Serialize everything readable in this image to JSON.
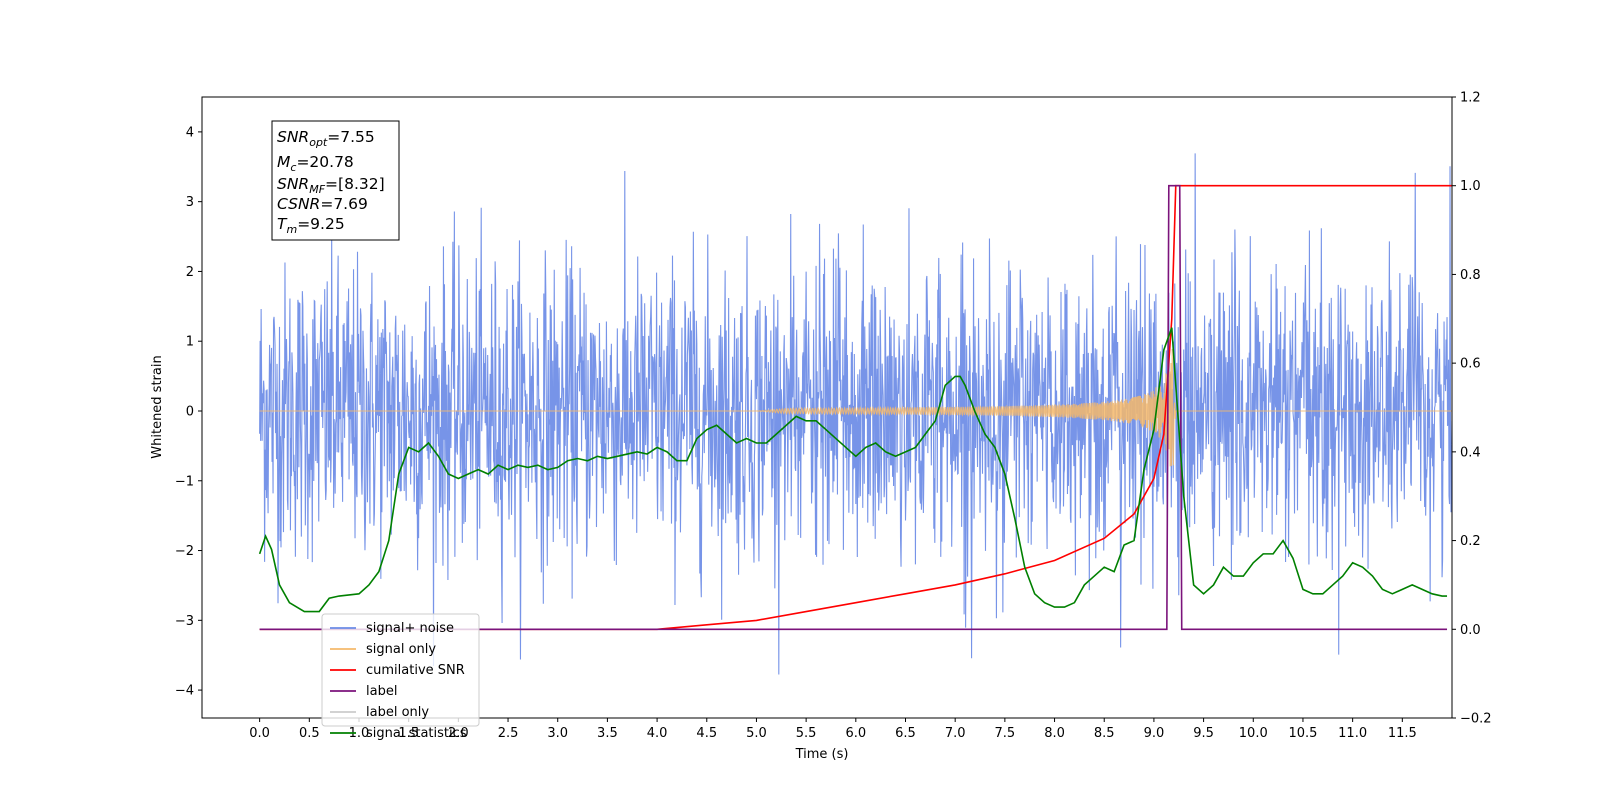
{
  "chart_data": {
    "type": "line",
    "xlabel": "Time (s)",
    "ylabel": "Whitened strain",
    "xlim": [
      -0.58,
      12.0
    ],
    "ylim": [
      -4.4,
      4.5
    ],
    "y2lim": [
      -0.2,
      1.2
    ],
    "x_ticks": [
      "0.0",
      "0.5",
      "1.0",
      "1.5",
      "2.0",
      "2.5",
      "3.0",
      "3.5",
      "4.0",
      "4.5",
      "5.0",
      "5.5",
      "6.0",
      "6.5",
      "7.0",
      "7.5",
      "8.0",
      "8.5",
      "9.0",
      "9.5",
      "10.0",
      "10.5",
      "11.0",
      "11.5"
    ],
    "y_ticks": [
      "4",
      "3",
      "2",
      "1",
      "0",
      "−1",
      "−2",
      "−3",
      "−4"
    ],
    "y2_ticks": [
      "1.2",
      "1.0",
      "0.8",
      "0.6",
      "0.4",
      "0.2",
      "0.0",
      "−0.2"
    ],
    "grid": false,
    "legend_position": "lower-left",
    "info_box": {
      "snr_opt": {
        "base": "SNR",
        "sub": "opt",
        "value": "=7.55"
      },
      "mc": {
        "base": "M",
        "sub": "c",
        "value": "=20.78"
      },
      "snr_mf": {
        "base": "SNR",
        "sub": "MF",
        "value": "=[8.32]"
      },
      "csnr": {
        "base": "CSNR",
        "value": "=7.69"
      },
      "tm": {
        "base": "T",
        "sub": "m",
        "value": "=9.25"
      }
    },
    "series": [
      {
        "name": "signal+ noise",
        "axis": "left",
        "color": "#6b8be6",
        "description_range": [
          -3.9,
          4.1
        ],
        "x_range": [
          0.0,
          12.0
        ]
      },
      {
        "name": "signal only",
        "axis": "left",
        "color": "#f5b96b",
        "chirp_start": 5.0,
        "merger": 9.18,
        "peak_amplitude": 1.0
      },
      {
        "name": "cumilative SNR",
        "axis": "right",
        "color": "#ff0000",
        "x": [
          0.0,
          4.0,
          4.5,
          5.0,
          5.5,
          6.0,
          6.5,
          7.0,
          7.5,
          8.0,
          8.5,
          8.8,
          9.0,
          9.1,
          9.18,
          9.22,
          12.0
        ],
        "y": [
          0.0,
          0.0,
          0.01,
          0.02,
          0.04,
          0.06,
          0.08,
          0.1,
          0.125,
          0.155,
          0.205,
          0.26,
          0.34,
          0.44,
          0.7,
          1.0,
          1.0
        ]
      },
      {
        "name": "label",
        "axis": "right",
        "color": "#7b137b",
        "x": [
          0.0,
          9.13,
          9.15,
          9.26,
          9.28,
          11.95
        ],
        "y": [
          0.0,
          0.0,
          1.0,
          1.0,
          0.0,
          0.0
        ]
      },
      {
        "name": "label only",
        "axis": "right",
        "color": "#cccccc",
        "x": [],
        "y": []
      },
      {
        "name": "signal statistics",
        "axis": "right",
        "color": "#008000",
        "x": [
          0.0,
          0.06,
          0.12,
          0.2,
          0.3,
          0.45,
          0.6,
          0.7,
          0.8,
          1.0,
          1.1,
          1.2,
          1.3,
          1.4,
          1.5,
          1.6,
          1.7,
          1.8,
          1.9,
          2.0,
          2.1,
          2.2,
          2.3,
          2.4,
          2.5,
          2.6,
          2.7,
          2.8,
          2.9,
          3.0,
          3.1,
          3.2,
          3.3,
          3.4,
          3.5,
          3.6,
          3.7,
          3.8,
          3.9,
          4.0,
          4.1,
          4.2,
          4.3,
          4.4,
          4.5,
          4.6,
          4.7,
          4.8,
          4.9,
          5.0,
          5.1,
          5.2,
          5.3,
          5.4,
          5.5,
          5.6,
          5.7,
          5.8,
          5.9,
          6.0,
          6.1,
          6.2,
          6.3,
          6.4,
          6.5,
          6.6,
          6.7,
          6.8,
          6.9,
          7.0,
          7.05,
          7.1,
          7.2,
          7.3,
          7.4,
          7.5,
          7.6,
          7.7,
          7.8,
          7.9,
          8.0,
          8.1,
          8.2,
          8.3,
          8.4,
          8.5,
          8.6,
          8.7,
          8.8,
          8.9,
          9.0,
          9.1,
          9.18,
          9.22,
          9.3,
          9.4,
          9.5,
          9.6,
          9.7,
          9.8,
          9.9,
          10.0,
          10.1,
          10.2,
          10.3,
          10.4,
          10.5,
          10.6,
          10.7,
          10.8,
          10.9,
          11.0,
          11.1,
          11.2,
          11.3,
          11.4,
          11.5,
          11.6,
          11.7,
          11.8,
          11.9,
          11.95
        ],
        "y": [
          0.17,
          0.21,
          0.18,
          0.1,
          0.06,
          0.04,
          0.04,
          0.07,
          0.075,
          0.08,
          0.1,
          0.13,
          0.2,
          0.35,
          0.41,
          0.4,
          0.42,
          0.39,
          0.35,
          0.34,
          0.35,
          0.36,
          0.35,
          0.37,
          0.36,
          0.37,
          0.365,
          0.37,
          0.36,
          0.365,
          0.38,
          0.385,
          0.38,
          0.39,
          0.385,
          0.39,
          0.395,
          0.4,
          0.395,
          0.41,
          0.4,
          0.38,
          0.38,
          0.43,
          0.45,
          0.46,
          0.44,
          0.42,
          0.43,
          0.42,
          0.42,
          0.44,
          0.46,
          0.48,
          0.47,
          0.47,
          0.45,
          0.43,
          0.41,
          0.39,
          0.41,
          0.42,
          0.4,
          0.39,
          0.4,
          0.41,
          0.44,
          0.47,
          0.55,
          0.57,
          0.57,
          0.55,
          0.49,
          0.44,
          0.41,
          0.35,
          0.25,
          0.14,
          0.08,
          0.06,
          0.05,
          0.05,
          0.06,
          0.1,
          0.12,
          0.14,
          0.13,
          0.19,
          0.2,
          0.36,
          0.45,
          0.63,
          0.68,
          0.55,
          0.3,
          0.1,
          0.08,
          0.1,
          0.14,
          0.12,
          0.12,
          0.15,
          0.17,
          0.17,
          0.2,
          0.16,
          0.09,
          0.08,
          0.08,
          0.1,
          0.12,
          0.15,
          0.14,
          0.12,
          0.09,
          0.08,
          0.09,
          0.1,
          0.09,
          0.08,
          0.075,
          0.075
        ]
      }
    ]
  }
}
